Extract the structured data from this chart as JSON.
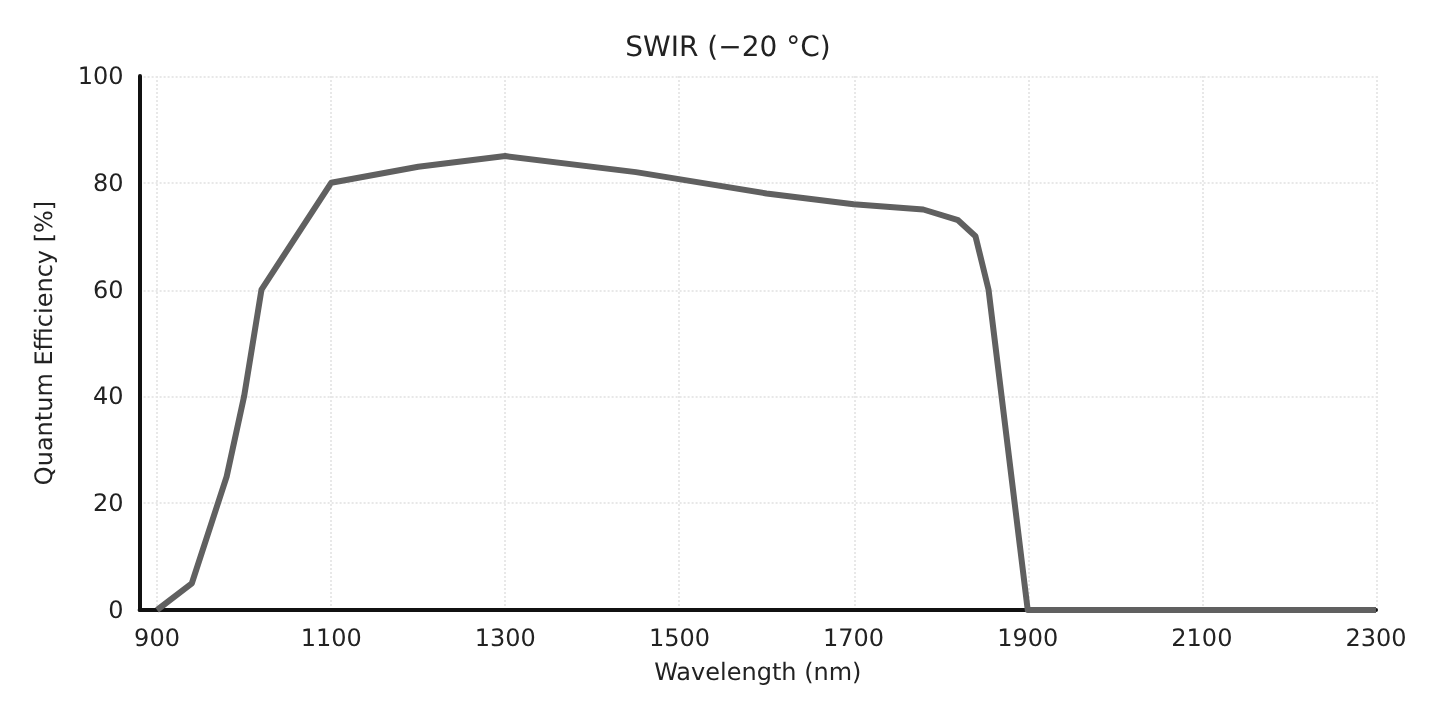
{
  "chart_data": {
    "type": "line",
    "title": "SWIR (−20 °C)",
    "xlabel": "Wavelength (nm)",
    "ylabel": "Quantum Efficiency [%]",
    "x": [
      900,
      940,
      980,
      1000,
      1020,
      1100,
      1200,
      1300,
      1450,
      1600,
      1700,
      1780,
      1820,
      1840,
      1855,
      1900,
      2300
    ],
    "series": [
      {
        "color": "#606060",
        "values": [
          0,
          5,
          25,
          40,
          60,
          80,
          83,
          85,
          82,
          78,
          76,
          75,
          73,
          70,
          60,
          0,
          0
        ]
      }
    ],
    "xlim": [
      880,
      2300
    ],
    "xticks": [
      900,
      1100,
      1300,
      1500,
      1700,
      1900,
      2100,
      2300
    ],
    "ylim": [
      0,
      100
    ],
    "yticks": [
      0,
      20,
      40,
      60,
      80,
      100
    ],
    "grid": true,
    "marker": "none",
    "line_style": "solid"
  }
}
